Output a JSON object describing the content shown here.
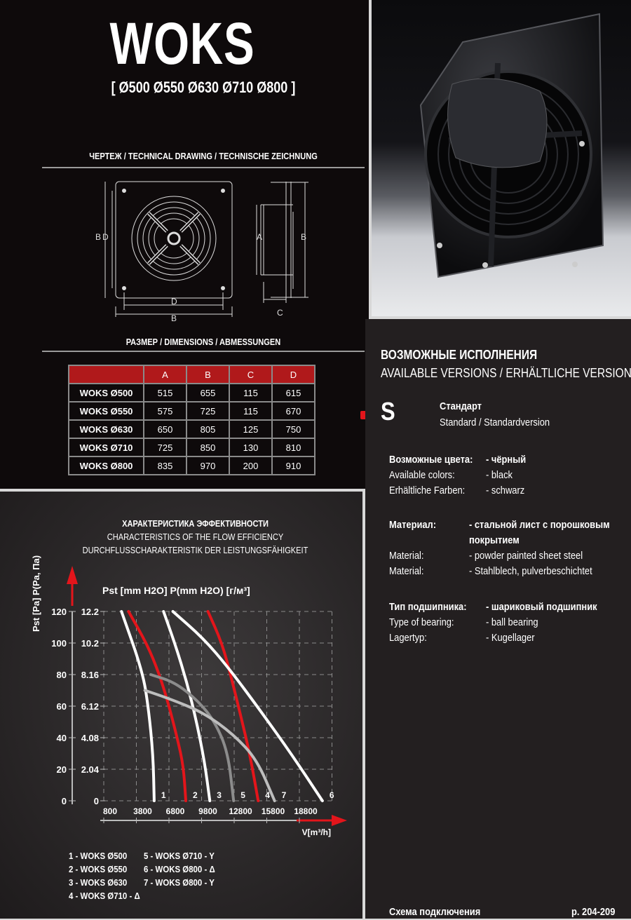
{
  "header": {
    "title": "WOKS",
    "sizes": "[ Ø500  Ø550  Ø630  Ø710  Ø800 ]"
  },
  "drawing": {
    "heading": "ЧЕРТЕЖ / TECHNICAL DRAWING / TECHNISCHE ZEICHNUNG",
    "labels": {
      "A": "A",
      "B": "B",
      "C": "C",
      "D": "D"
    }
  },
  "dimensions": {
    "heading": "РАЗМЕР / DIMENSIONS / ABMESSUNGEN",
    "columns": [
      "",
      "A",
      "B",
      "C",
      "D"
    ],
    "rows": [
      [
        "WOKS Ø500",
        "515",
        "655",
        "115",
        "615"
      ],
      [
        "WOKS Ø550",
        "575",
        "725",
        "115",
        "670"
      ],
      [
        "WOKS Ø630",
        "650",
        "805",
        "125",
        "750"
      ],
      [
        "WOKS Ø710",
        "725",
        "850",
        "130",
        "810"
      ],
      [
        "WOKS Ø800",
        "835",
        "970",
        "200",
        "910"
      ]
    ]
  },
  "versions": {
    "heading_ru": "ВОЗМОЖНЫЕ ИСПОЛНЕНИЯ",
    "heading_en": "AVAILABLE VERSIONS / ERHÄLTLICHE VERSIONEN",
    "code": "S",
    "name_ru": "Стандарт",
    "name_en": "Standard / Standardversion"
  },
  "specs": [
    {
      "ru_label": "Возможные цвета:",
      "ru_value": "- чёрный",
      "en_label": "Available colors:",
      "en_value": "- black",
      "de_label": "Erhältliche Farben:",
      "de_value": "- schwarz"
    },
    {
      "ru_label": "Материал:",
      "ru_value": "- стальной лист с порошковым покрытием",
      "en_label": "Material:",
      "en_value": "- powder painted sheet steel",
      "de_label": "Material:",
      "de_value": "- Stahlblech, pulverbeschichtet"
    },
    {
      "ru_label": "Тип подшипника:",
      "ru_value": "- шариковый подшипник",
      "en_label": "Type of bearing:",
      "en_value": "- ball bearing",
      "de_label": "Lagertyp:",
      "de_value": "- Kugellager"
    }
  ],
  "footer": {
    "wiring": "Схема подключения",
    "pages": "p. 204-209"
  },
  "colors": {
    "accent": "#e3151b",
    "table_header": "#b0191b"
  },
  "chart_data": {
    "type": "line",
    "title_ru": "ХАРАКТЕРИСТИКА ЭФФЕКТИВНОСТИ",
    "title_en": "CHARACTERISTICS OF THE FLOW EFFICIENCY",
    "title_de": "DURCHFLUSSCHARAKTERISTIK DER LEISTUNGSFÄHIGKEIT",
    "ylabel": "Pst [Pa] P(Pa, Па)",
    "ylabel2": "Pst [mm H2O] P(mm H2O) [г/м³]",
    "xlabel": "V[m³/h]",
    "x_ticks": [
      "800",
      "3800",
      "6800",
      "9800",
      "12800",
      "15800",
      "18800"
    ],
    "y_ticks": [
      "0",
      "20",
      "40",
      "60",
      "80",
      "100",
      "120"
    ],
    "y2_ticks": [
      "0",
      "2.04",
      "4.08",
      "6.12",
      "8.16",
      "10.2",
      "12.2"
    ],
    "xlim": [
      800,
      22000
    ],
    "ylim": [
      0,
      120
    ],
    "grid": true,
    "series": [
      {
        "name": "1",
        "color": "#ffffff",
        "x": [
          2430,
          4370,
          4910,
          5340,
          5440
        ],
        "y": [
          120,
          82,
          59,
          29,
          0
        ]
      },
      {
        "name": "2",
        "color": "#e3151b",
        "x": [
          3080,
          4800,
          5870,
          6730,
          7590,
          8130,
          8350
        ],
        "y": [
          120,
          99,
          81,
          62,
          39,
          22,
          0
        ]
      },
      {
        "name": "3",
        "color": "#ffffff",
        "x": [
          6300,
          7380,
          8450,
          9310,
          10070,
          10560
        ],
        "y": [
          120,
          99,
          75,
          51,
          25,
          0
        ]
      },
      {
        "name": "4",
        "color": "#e3151b",
        "x": [
          10390,
          11680,
          12540,
          13400,
          14260,
          15010
        ],
        "y": [
          120,
          100,
          78,
          54,
          29,
          0
        ]
      },
      {
        "name": "5",
        "color": "#8c8c8c",
        "x": [
          5120,
          7380,
          9530,
          11030,
          12220,
          12750
        ],
        "y": [
          80,
          75,
          63,
          50,
          31,
          0
        ]
      },
      {
        "name": "6",
        "color": "#ffffff",
        "x": [
          7160,
          9960,
          12320,
          15330,
          18130,
          20920
        ],
        "y": [
          120,
          103,
          84,
          56,
          29,
          0
        ]
      },
      {
        "name": "7",
        "color": "#bdbdbd",
        "x": [
          4580,
          6730,
          9960,
          12750,
          14900,
          16520
        ],
        "y": [
          70,
          65,
          56,
          42,
          26,
          0
        ]
      }
    ],
    "legend": [
      "1 - WOKS Ø500",
      "2 - WOKS Ø550",
      "3 - WOKS Ø630",
      "4 - WOKS Ø710 - Δ",
      "5 - WOKS Ø710 - Y",
      "6 - WOKS Ø800 - Δ",
      "7 - WOKS Ø800 - Y"
    ]
  }
}
